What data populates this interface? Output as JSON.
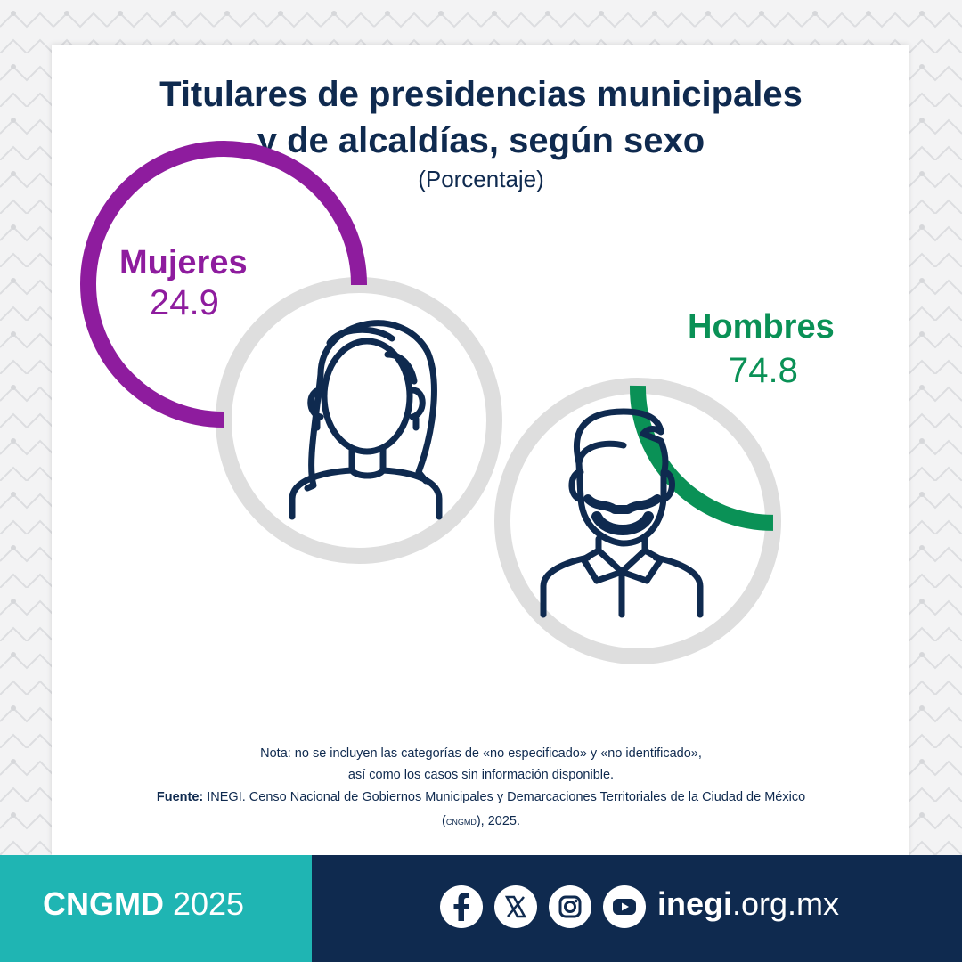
{
  "chart_data": {
    "type": "pie",
    "title_lines": [
      "Titulares de presidencias municipales",
      "y de alcaldías, según sexo"
    ],
    "subtitle": "(Porcentaje)",
    "series": [
      {
        "name": "Mujeres",
        "value": 24.9,
        "value_label": "24.9",
        "color": "#8e1c9e"
      },
      {
        "name": "Hombres",
        "value": 74.8,
        "value_label": "74.8",
        "color": "#0a9156"
      }
    ],
    "track_color": "#dedede",
    "unit": "percent"
  },
  "notes": {
    "line1": "Nota: no se incluyen las categorías de «no especificado» y «no identificado»,",
    "line2": "así como los casos sin información disponible.",
    "source_label": "Fuente:",
    "source_text": " INEGI. Censo Nacional de Gobiernos Municipales y Demarcaciones Territoriales de la Ciudad de México",
    "source_abbr": "cngmd",
    "source_tail": "), 2025.",
    "source_open": "("
  },
  "footer": {
    "brand_strong": "CNGMD",
    "brand_year": " 2025",
    "site_strong": "inegi",
    "site_rest": ".org.mx",
    "social_icons": [
      "facebook-icon",
      "x-icon",
      "instagram-icon",
      "youtube-icon"
    ],
    "colors": {
      "teal": "#1fb5b3",
      "navy": "#0f2a4f"
    }
  }
}
